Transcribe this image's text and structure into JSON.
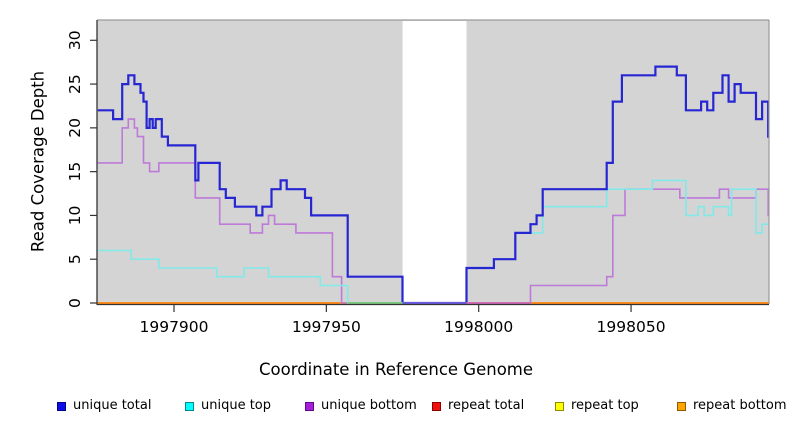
{
  "chart_data": {
    "type": "line",
    "subtype": "step",
    "title": "",
    "xlabel": "Coordinate in Reference Genome",
    "ylabel": "Read Coverage Depth",
    "x_ticks": [
      1997900,
      1997950,
      1998000,
      1998050
    ],
    "y_ticks": [
      0,
      5,
      10,
      15,
      20,
      25,
      30
    ],
    "x_range": [
      1997875,
      1998095
    ],
    "y_range": [
      0,
      32
    ],
    "grid": "off",
    "legend_position": "bottom",
    "panel_bg": "#d4d4d4",
    "masked_region": {
      "from": 1997975,
      "to": 1997996,
      "color": "#ffffff"
    },
    "series": [
      {
        "name": "unique total",
        "color": "#2626d2",
        "legend_fill": "#0d0de8",
        "legend_border": "#00008b",
        "width": 2.2,
        "steps": [
          [
            1997875,
            22
          ],
          [
            1997880,
            21
          ],
          [
            1997883,
            25
          ],
          [
            1997885,
            26
          ],
          [
            1997887,
            25
          ],
          [
            1997889,
            24
          ],
          [
            1997890,
            23
          ],
          [
            1997891,
            20
          ],
          [
            1997892,
            21
          ],
          [
            1997893,
            20
          ],
          [
            1997894,
            21
          ],
          [
            1997896,
            19
          ],
          [
            1997898,
            18
          ],
          [
            1997907,
            14
          ],
          [
            1997908,
            16
          ],
          [
            1997915,
            13
          ],
          [
            1997917,
            12
          ],
          [
            1997920,
            11
          ],
          [
            1997927,
            10
          ],
          [
            1997929,
            11
          ],
          [
            1997932,
            13
          ],
          [
            1997935,
            14
          ],
          [
            1997937,
            13
          ],
          [
            1997943,
            12
          ],
          [
            1997945,
            10
          ],
          [
            1997957,
            3
          ],
          [
            1997975,
            0
          ],
          [
            1997996,
            4
          ],
          [
            1998005,
            5
          ],
          [
            1998012,
            8
          ],
          [
            1998017,
            9
          ],
          [
            1998019,
            10
          ],
          [
            1998021,
            13
          ],
          [
            1998042,
            16
          ],
          [
            1998044,
            23
          ],
          [
            1998047,
            26
          ],
          [
            1998058,
            27
          ],
          [
            1998065,
            26
          ],
          [
            1998068,
            22
          ],
          [
            1998073,
            23
          ],
          [
            1998075,
            22
          ],
          [
            1998077,
            24
          ],
          [
            1998080,
            26
          ],
          [
            1998082,
            23
          ],
          [
            1998084,
            25
          ],
          [
            1998086,
            24
          ],
          [
            1998091,
            21
          ],
          [
            1998093,
            23
          ],
          [
            1998095,
            19
          ]
        ]
      },
      {
        "name": "unique top",
        "color": "#82e9e9",
        "legend_fill": "#00ffff",
        "legend_border": "#008b8b",
        "width": 1.6,
        "steps": [
          [
            1997875,
            6
          ],
          [
            1997886,
            5
          ],
          [
            1997895,
            4
          ],
          [
            1997914,
            3
          ],
          [
            1997923,
            4
          ],
          [
            1997931,
            3
          ],
          [
            1997948,
            2
          ],
          [
            1997957,
            0
          ],
          [
            1997996,
            4
          ],
          [
            1998005,
            5
          ],
          [
            1998012,
            8
          ],
          [
            1998021,
            11
          ],
          [
            1998042,
            13
          ],
          [
            1998057,
            14
          ],
          [
            1998068,
            10
          ],
          [
            1998072,
            11
          ],
          [
            1998074,
            10
          ],
          [
            1998077,
            11
          ],
          [
            1998082,
            10
          ],
          [
            1998083,
            13
          ],
          [
            1998091,
            8
          ],
          [
            1998093,
            9
          ]
        ]
      },
      {
        "name": "unique bottom",
        "color": "#bd7ad8",
        "legend_fill": "#a51fd8",
        "legend_border": "#5a0a8b",
        "width": 1.6,
        "steps": [
          [
            1997875,
            16
          ],
          [
            1997883,
            20
          ],
          [
            1997885,
            21
          ],
          [
            1997887,
            20
          ],
          [
            1997888,
            19
          ],
          [
            1997890,
            16
          ],
          [
            1997892,
            15
          ],
          [
            1997895,
            16
          ],
          [
            1997907,
            12
          ],
          [
            1997915,
            9
          ],
          [
            1997925,
            8
          ],
          [
            1997929,
            9
          ],
          [
            1997931,
            10
          ],
          [
            1997933,
            9
          ],
          [
            1997940,
            8
          ],
          [
            1997952,
            3
          ],
          [
            1997955,
            0
          ],
          [
            1998017,
            2
          ],
          [
            1998042,
            3
          ],
          [
            1998044,
            10
          ],
          [
            1998048,
            13
          ],
          [
            1998066,
            12
          ],
          [
            1998079,
            13
          ],
          [
            1998082,
            12
          ],
          [
            1998091,
            13
          ],
          [
            1998095,
            10
          ]
        ]
      },
      {
        "name": "repeat total",
        "color": "#cc2222",
        "legend_fill": "#ee1111",
        "legend_border": "#8b0000",
        "width": 1.6,
        "steps": [
          [
            1997875,
            0
          ]
        ]
      },
      {
        "name": "repeat top",
        "color": "#e8e822",
        "legend_fill": "#ffff00",
        "legend_border": "#8b8b00",
        "width": 1.6,
        "steps": [
          [
            1997875,
            0
          ]
        ]
      },
      {
        "name": "repeat bottom",
        "color": "#ff8c1a",
        "legend_fill": "#ffa500",
        "legend_border": "#8b5a00",
        "width": 2,
        "steps": [
          [
            1997875,
            0
          ]
        ]
      }
    ],
    "baseline_overlays": [
      {
        "from": 1997957,
        "to": 1997975,
        "color": "#7cc87f"
      },
      {
        "from": 1997975,
        "to": 1997996,
        "color": "#6a5ae0"
      },
      {
        "from": 1997996,
        "to": 1998017,
        "color": "#cf6ab5"
      }
    ]
  }
}
